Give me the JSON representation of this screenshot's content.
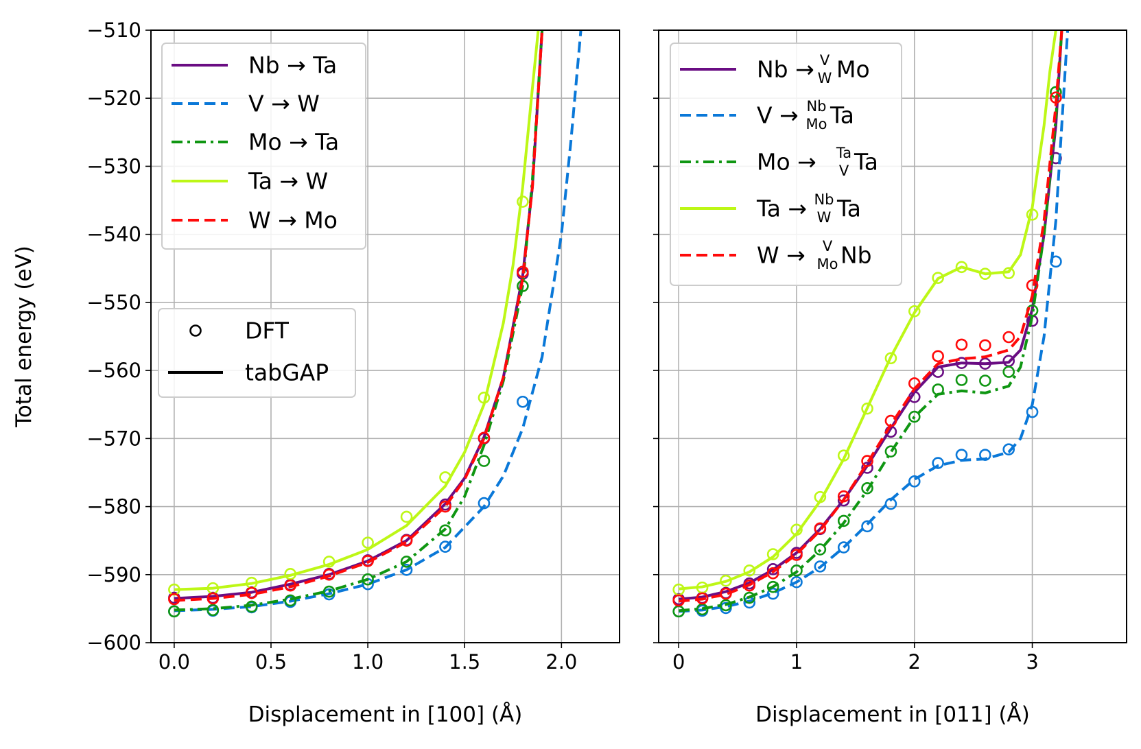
{
  "chart_data": [
    {
      "type": "line",
      "xlabel": "Displacement in [100] (Å)",
      "ylabel": "Total energy (eV)",
      "xlim": [
        -0.12,
        2.3
      ],
      "ylim": [
        -600,
        -510
      ],
      "grid": true,
      "legend_position": "top-left",
      "xticks": [
        {
          "value": 0.0,
          "label": "0.0"
        },
        {
          "value": 0.5,
          "label": "0.5"
        },
        {
          "value": 1.0,
          "label": "1.0"
        },
        {
          "value": 1.5,
          "label": "1.5"
        },
        {
          "value": 2.0,
          "label": "2.0"
        }
      ],
      "yticks": [
        {
          "value": -510,
          "label": "−510"
        },
        {
          "value": -520,
          "label": "−520"
        },
        {
          "value": -530,
          "label": "−530"
        },
        {
          "value": -540,
          "label": "−540"
        },
        {
          "value": -550,
          "label": "−550"
        },
        {
          "value": -560,
          "label": "−560"
        },
        {
          "value": -570,
          "label": "−570"
        },
        {
          "value": -580,
          "label": "−580"
        },
        {
          "value": -590,
          "label": "−590"
        },
        {
          "value": -600,
          "label": "−600"
        }
      ],
      "series": [
        {
          "name": "Nb → Ta",
          "legend_main": "Nb → Ta",
          "legend_sup": "",
          "legend_sub": "",
          "legend_tail": "",
          "color": "#6a0d83",
          "dash": "solid",
          "line_x": [
            0,
            0.2,
            0.4,
            0.6,
            0.8,
            1.0,
            1.2,
            1.4,
            1.5,
            1.6,
            1.7,
            1.8,
            1.85,
            1.9
          ],
          "line_y": [
            -593.5,
            -593.2,
            -592.6,
            -591.4,
            -590.0,
            -588.0,
            -585.0,
            -579.6,
            -575.8,
            -569.8,
            -561.0,
            -546.0,
            -533.0,
            -510.0
          ],
          "dft_x": [
            0,
            0.2,
            0.4,
            0.6,
            0.8,
            1.0,
            1.2,
            1.4,
            1.6,
            1.8
          ],
          "dft_y": [
            -593.4,
            -593.4,
            -592.6,
            -591.5,
            -589.9,
            -587.9,
            -584.9,
            -579.7,
            -570.0,
            -545.8
          ]
        },
        {
          "name": "V → W",
          "legend_main": "V → W",
          "legend_sup": "",
          "legend_sub": "",
          "legend_tail": "",
          "color": "#0a78d8",
          "dash": "dashed",
          "line_x": [
            0,
            0.2,
            0.4,
            0.6,
            0.8,
            1.0,
            1.2,
            1.4,
            1.6,
            1.7,
            1.8,
            1.9,
            2.0,
            2.05,
            2.1
          ],
          "line_y": [
            -595.3,
            -595.1,
            -594.7,
            -593.9,
            -592.8,
            -591.4,
            -589.3,
            -586.0,
            -580.0,
            -575.5,
            -568.5,
            -558.0,
            -540.0,
            -526.0,
            -510.0
          ],
          "dft_x": [
            0,
            0.2,
            0.4,
            0.6,
            0.8,
            1.0,
            1.2,
            1.4,
            1.6,
            1.8
          ],
          "dft_y": [
            -595.4,
            -595.3,
            -594.8,
            -594.0,
            -592.9,
            -591.4,
            -589.3,
            -585.9,
            -579.5,
            -564.6
          ]
        },
        {
          "name": "Mo → Ta",
          "legend_main": "Mo → Ta",
          "legend_sup": "",
          "legend_sub": "",
          "legend_tail": "",
          "color": "#0f9612",
          "dash": "dashdot",
          "line_x": [
            0,
            0.2,
            0.4,
            0.6,
            0.8,
            1.0,
            1.2,
            1.4,
            1.5,
            1.6,
            1.7,
            1.8,
            1.85,
            1.9
          ],
          "line_y": [
            -595.2,
            -595.0,
            -594.5,
            -593.6,
            -592.4,
            -590.7,
            -588.1,
            -583.3,
            -578.5,
            -571.0,
            -561.5,
            -547.5,
            -532.0,
            -510.0
          ],
          "dft_x": [
            0,
            0.2,
            0.4,
            0.6,
            0.8,
            1.0,
            1.2,
            1.4,
            1.6,
            1.8
          ],
          "dft_y": [
            -595.4,
            -595.2,
            -594.7,
            -593.8,
            -592.5,
            -590.7,
            -588.1,
            -583.5,
            -573.3,
            -547.6
          ]
        },
        {
          "name": "Ta → W",
          "legend_main": "Ta → W",
          "legend_sup": "",
          "legend_sub": "",
          "legend_tail": "",
          "color": "#bdf716",
          "dash": "solid",
          "line_x": [
            0,
            0.2,
            0.4,
            0.6,
            0.8,
            1.0,
            1.2,
            1.4,
            1.5,
            1.6,
            1.7,
            1.75,
            1.8,
            1.85,
            1.88
          ],
          "line_y": [
            -592.2,
            -592.0,
            -591.3,
            -590.1,
            -588.5,
            -586.3,
            -582.8,
            -577.0,
            -572.0,
            -565.0,
            -553.0,
            -544.5,
            -533.0,
            -518.5,
            -510.0
          ],
          "dft_x": [
            0,
            0.2,
            0.4,
            0.6,
            0.8,
            1.0,
            1.2,
            1.4,
            1.6,
            1.8
          ],
          "dft_y": [
            -592.2,
            -592.0,
            -591.2,
            -589.9,
            -588.1,
            -585.3,
            -581.5,
            -575.7,
            -564.0,
            -535.2
          ]
        },
        {
          "name": "W → Mo",
          "legend_main": "W → Mo",
          "legend_sup": "",
          "legend_sub": "",
          "legend_tail": "",
          "color": "#ff0a0a",
          "dash": "dashed",
          "line_x": [
            0,
            0.2,
            0.4,
            0.6,
            0.8,
            1.0,
            1.2,
            1.4,
            1.5,
            1.6,
            1.7,
            1.8,
            1.85,
            1.9
          ],
          "line_y": [
            -593.8,
            -593.5,
            -592.9,
            -591.8,
            -590.2,
            -588.2,
            -585.2,
            -580.0,
            -576.0,
            -570.0,
            -561.0,
            -546.5,
            -533.0,
            -510.0
          ],
          "dft_x": [
            0,
            0.2,
            0.4,
            0.6,
            0.8,
            1.0,
            1.2,
            1.4,
            1.6,
            1.8
          ],
          "dft_y": [
            -593.6,
            -593.5,
            -592.7,
            -591.6,
            -590.0,
            -588.0,
            -585.0,
            -580.0,
            -569.9,
            -545.5
          ]
        }
      ],
      "marker_legend": {
        "dft_label": "DFT",
        "line_label": "tabGAP"
      }
    },
    {
      "type": "line",
      "xlabel": "Displacement in [011] (Å)",
      "ylabel": "",
      "xlim": [
        -0.17,
        3.8
      ],
      "ylim": [
        -600,
        -510
      ],
      "grid": true,
      "legend_position": "top-left",
      "xticks": [
        {
          "value": 0,
          "label": "0"
        },
        {
          "value": 1,
          "label": "1"
        },
        {
          "value": 2,
          "label": "2"
        },
        {
          "value": 3,
          "label": "3"
        }
      ],
      "yticks": [
        {
          "value": -510,
          "label": ""
        },
        {
          "value": -520,
          "label": ""
        },
        {
          "value": -530,
          "label": ""
        },
        {
          "value": -540,
          "label": ""
        },
        {
          "value": -550,
          "label": ""
        },
        {
          "value": -560,
          "label": ""
        },
        {
          "value": -570,
          "label": ""
        },
        {
          "value": -580,
          "label": ""
        },
        {
          "value": -590,
          "label": ""
        },
        {
          "value": -600,
          "label": ""
        }
      ],
      "series": [
        {
          "name": "Nb → Mo (sup V, sub W)",
          "legend_main": "Nb → ",
          "legend_sup": "V",
          "legend_sub": "W",
          "legend_tail": "Mo",
          "color": "#6a0d83",
          "dash": "solid",
          "line_x": [
            0,
            0.2,
            0.4,
            0.6,
            0.8,
            1.0,
            1.2,
            1.4,
            1.6,
            1.8,
            2.0,
            2.2,
            2.4,
            2.6,
            2.8,
            2.9,
            3.0,
            3.1,
            3.2,
            3.25
          ],
          "line_y": [
            -593.6,
            -593.3,
            -592.5,
            -591.2,
            -589.3,
            -586.8,
            -583.3,
            -579.0,
            -574.0,
            -568.5,
            -563.2,
            -559.5,
            -558.9,
            -559.0,
            -558.8,
            -557.0,
            -551.0,
            -540.0,
            -524.0,
            -510.0
          ],
          "dft_x": [
            0,
            0.2,
            0.4,
            0.6,
            0.8,
            1.0,
            1.2,
            1.4,
            1.6,
            1.8,
            2.0,
            2.2,
            2.4,
            2.6,
            2.8,
            3.0,
            3.2
          ],
          "dft_y": [
            -593.6,
            -593.4,
            -592.7,
            -591.3,
            -589.2,
            -586.8,
            -583.3,
            -579.1,
            -574.3,
            -569.0,
            -563.9,
            -560.2,
            -558.9,
            -559.0,
            -558.6,
            -552.7,
            -528.8
          ]
        },
        {
          "name": "V → Ta (sup Nb, sub Mo)",
          "legend_main": "V → ",
          "legend_sup": "Nb",
          "legend_sub": "Mo",
          "legend_tail": "Ta",
          "color": "#0a78d8",
          "dash": "dashed",
          "line_x": [
            0,
            0.2,
            0.4,
            0.6,
            0.8,
            1.0,
            1.2,
            1.4,
            1.6,
            1.8,
            2.0,
            2.2,
            2.4,
            2.6,
            2.8,
            2.9,
            3.0,
            3.1,
            3.2,
            3.3
          ],
          "line_y": [
            -595.4,
            -595.2,
            -594.7,
            -593.9,
            -592.7,
            -591.1,
            -588.9,
            -586.0,
            -582.6,
            -579.0,
            -576.0,
            -574.0,
            -573.2,
            -573.0,
            -572.0,
            -570.0,
            -565.0,
            -555.0,
            -538.0,
            -510.0
          ],
          "dft_x": [
            0,
            0.2,
            0.4,
            0.6,
            0.8,
            1.0,
            1.2,
            1.4,
            1.6,
            1.8,
            2.0,
            2.2,
            2.4,
            2.6,
            2.8,
            3.0,
            3.2
          ],
          "dft_y": [
            -595.4,
            -595.3,
            -594.9,
            -594.1,
            -592.8,
            -591.1,
            -588.8,
            -586.0,
            -582.9,
            -579.6,
            -576.3,
            -573.6,
            -572.4,
            -572.4,
            -571.6,
            -566.1,
            -544.0
          ]
        },
        {
          "name": "Mo → Ta (sup Ta, sub V)",
          "legend_main": "Mo → ",
          "legend_sup": "Ta",
          "legend_sub": "V",
          "legend_tail": "Ta",
          "color": "#0f9612",
          "dash": "dashdot",
          "line_x": [
            0,
            0.2,
            0.4,
            0.6,
            0.8,
            1.0,
            1.2,
            1.4,
            1.6,
            1.8,
            2.0,
            2.2,
            2.4,
            2.6,
            2.8,
            2.9,
            3.0,
            3.1,
            3.2,
            3.25
          ],
          "line_y": [
            -595.3,
            -595.0,
            -594.4,
            -593.3,
            -591.8,
            -589.6,
            -586.4,
            -582.4,
            -577.6,
            -572.0,
            -566.8,
            -563.5,
            -563.0,
            -563.3,
            -562.3,
            -559.5,
            -552.0,
            -540.0,
            -523.0,
            -510.0
          ],
          "dft_x": [
            0,
            0.2,
            0.4,
            0.6,
            0.8,
            1.0,
            1.2,
            1.4,
            1.6,
            1.8,
            2.0,
            2.2,
            2.4,
            2.6,
            2.8,
            3.0,
            3.2
          ],
          "dft_y": [
            -595.4,
            -595.1,
            -594.5,
            -593.4,
            -591.8,
            -589.4,
            -586.3,
            -582.1,
            -577.3,
            -571.9,
            -566.8,
            -562.8,
            -561.4,
            -561.5,
            -560.2,
            -551.2,
            -519.1
          ]
        },
        {
          "name": "Ta → Ta (sup Nb, sub W)",
          "legend_main": "Ta → ",
          "legend_sup": "Nb",
          "legend_sub": "W",
          "legend_tail": "Ta",
          "color": "#bdf716",
          "dash": "solid",
          "line_x": [
            0,
            0.2,
            0.4,
            0.6,
            0.8,
            1.0,
            1.2,
            1.4,
            1.6,
            1.8,
            2.0,
            2.2,
            2.4,
            2.6,
            2.8,
            2.9,
            3.0,
            3.1,
            3.15,
            3.2
          ],
          "line_y": [
            -592.1,
            -591.8,
            -591.0,
            -589.6,
            -587.4,
            -584.0,
            -579.2,
            -573.0,
            -565.5,
            -558.0,
            -551.5,
            -546.5,
            -544.8,
            -545.8,
            -545.5,
            -543.0,
            -536.0,
            -524.0,
            -516.0,
            -510.0
          ],
          "dft_x": [
            0,
            0.2,
            0.4,
            0.6,
            0.8,
            1.0,
            1.2,
            1.4,
            1.6,
            1.8,
            2.0,
            2.2,
            2.4,
            2.6,
            2.8,
            3.0
          ],
          "dft_y": [
            -592.2,
            -591.9,
            -590.9,
            -589.4,
            -587.0,
            -583.4,
            -578.6,
            -572.5,
            -565.6,
            -558.2,
            -551.3,
            -546.4,
            -544.8,
            -545.8,
            -545.7,
            -537.1
          ]
        },
        {
          "name": "W → Nb (sup V, sub Mo)",
          "legend_main": "W → ",
          "legend_sup": "V",
          "legend_sub": "Mo",
          "legend_tail": "Nb",
          "color": "#ff0a0a",
          "dash": "dashed",
          "line_x": [
            0,
            0.2,
            0.4,
            0.6,
            0.8,
            1.0,
            1.2,
            1.4,
            1.6,
            1.8,
            2.0,
            2.2,
            2.4,
            2.6,
            2.8,
            2.9,
            3.0,
            3.1,
            3.2,
            3.25
          ],
          "line_y": [
            -593.9,
            -593.6,
            -592.9,
            -591.5,
            -589.6,
            -587.0,
            -583.5,
            -579.0,
            -573.6,
            -568.0,
            -562.7,
            -559.0,
            -558.3,
            -558.0,
            -557.0,
            -555.0,
            -549.0,
            -538.0,
            -521.0,
            -510.0
          ],
          "dft_x": [
            0,
            0.2,
            0.4,
            0.6,
            0.8,
            1.0,
            1.2,
            1.4,
            1.6,
            1.8,
            2.0,
            2.2,
            2.4,
            2.6,
            2.8,
            3.0,
            3.2
          ],
          "dft_y": [
            -593.8,
            -593.5,
            -592.8,
            -591.6,
            -589.8,
            -587.1,
            -583.2,
            -578.5,
            -573.3,
            -567.4,
            -561.9,
            -557.9,
            -556.2,
            -556.3,
            -555.1,
            -547.5,
            -519.9
          ]
        }
      ]
    }
  ]
}
